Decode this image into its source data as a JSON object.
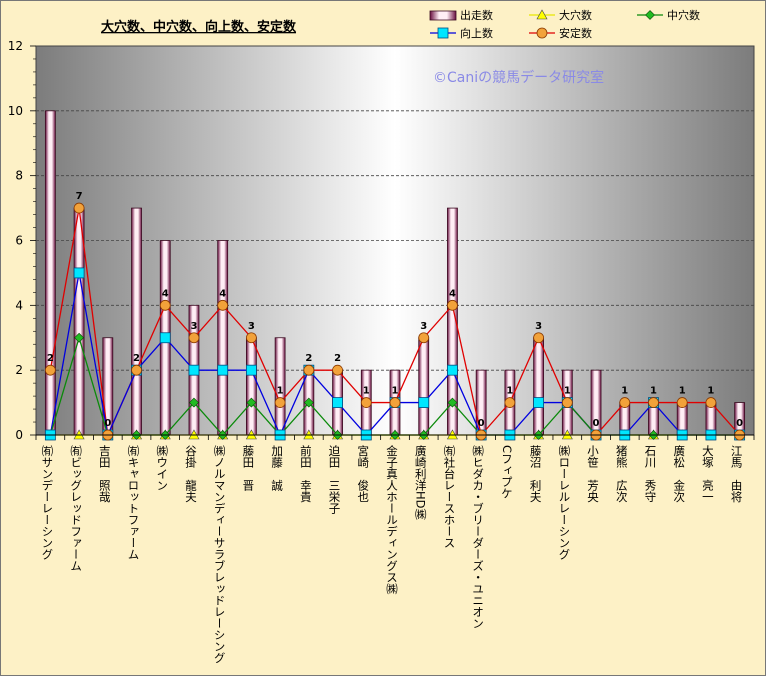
{
  "chart_data": {
    "type": "bar",
    "title": "大穴数、中穴数、向上数、安定数",
    "watermark": "©Caniの競馬データ研究室",
    "ylim": [
      0,
      12
    ],
    "yticks": [
      0,
      2,
      4,
      6,
      8,
      10,
      12
    ],
    "grid": true,
    "legend_position": "top-right",
    "categories": [
      "㈲サンデーレーシング",
      "㈲ビッグレッドファーム",
      "吉田　照哉",
      "㈲キャロットファーム",
      "㈱ウイン",
      "谷掛　龍夫",
      "㈱ノルマンディーサラブレッドレーシング",
      "藤田　晋",
      "加藤　誠",
      "前田　幸貴",
      "迫田　三栄子",
      "宮崎　俊也",
      "金子真人ホールディングス㈱",
      "廣崎利洋HD㈱",
      "㈲社台レースホース",
      "㈱ヒダカ・ブリーダーズ・ユニオン",
      "Cフィプケ",
      "藤沼　利夫",
      "㈱ローレルレーシング",
      "小笹　芳央",
      "猪熊　広次",
      "石川　秀守",
      "廣松　金次",
      "大塚　亮一",
      "江馬　由将"
    ],
    "series": [
      {
        "name": "出走数",
        "kind": "bar",
        "color": "#ffe8f0",
        "values": [
          10,
          7,
          3,
          7,
          6,
          4,
          6,
          3,
          3,
          2,
          2,
          2,
          2,
          3,
          7,
          2,
          2,
          3,
          2,
          2,
          1,
          1,
          1,
          1,
          1
        ]
      },
      {
        "name": "大穴数",
        "kind": "line",
        "marker": "triangle",
        "color": "#e8e800",
        "values": [
          0,
          0,
          0,
          0,
          0,
          0,
          0,
          0,
          0,
          0,
          0,
          0,
          0,
          0,
          0,
          0,
          0,
          0,
          0,
          0,
          0,
          0,
          0,
          0,
          0
        ]
      },
      {
        "name": "中穴数",
        "kind": "line",
        "marker": "diamond",
        "color": "#0a8a0a",
        "values": [
          0,
          3,
          0,
          0,
          0,
          1,
          0,
          1,
          0,
          1,
          0,
          0,
          0,
          0,
          1,
          0,
          0,
          0,
          1,
          0,
          0,
          0,
          0,
          0,
          0
        ]
      },
      {
        "name": "向上数",
        "kind": "line",
        "marker": "square",
        "color": "#0000e0",
        "values": [
          0,
          5,
          0,
          2,
          3,
          2,
          2,
          2,
          0,
          2,
          1,
          0,
          1,
          1,
          2,
          0,
          0,
          1,
          1,
          0,
          0,
          1,
          0,
          0,
          0
        ]
      },
      {
        "name": "安定数",
        "kind": "line",
        "marker": "circle",
        "color": "#e00000",
        "values": [
          2,
          7,
          0,
          2,
          4,
          3,
          4,
          3,
          1,
          2,
          2,
          1,
          1,
          3,
          4,
          0,
          1,
          3,
          1,
          0,
          1,
          1,
          1,
          1,
          0
        ]
      }
    ]
  }
}
